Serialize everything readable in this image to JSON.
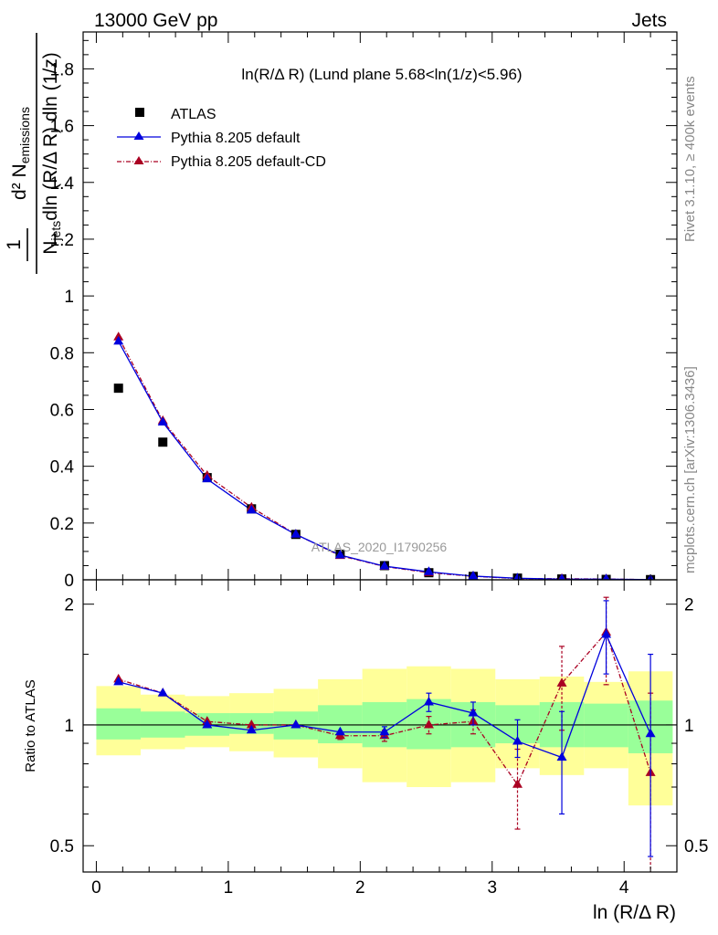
{
  "header": {
    "left_title": "13000 GeV pp",
    "right_title": "Jets"
  },
  "side_labels": {
    "rivet": "Rivet 3.1.10, ≥ 400k events",
    "mcplots": "mcplots.cern.ch [arXiv:1306.3436]"
  },
  "watermark": "ATLAS_2020_I1790256",
  "colors": {
    "atlas": "#000000",
    "pythia_default": "#0000dd",
    "pythia_cd": "#aa0022",
    "band_inner": "#99ff99",
    "band_outer": "#ffff99"
  },
  "chart_data": [
    {
      "type": "scatter",
      "title": "ln(R/Δ R) (Lund plane 5.68<ln(1/z)<5.96)",
      "xlabel": "ln (R/Δ R)",
      "ylabel": "1/N_jets d²N_emissions / dln (R/Δ R) dln (1/z)",
      "xlim": [
        -0.1,
        4.4
      ],
      "ylim": [
        0,
        1.93
      ],
      "yticks": [
        0,
        0.2,
        0.4,
        0.6,
        0.8,
        1,
        1.2,
        1.4,
        1.6,
        1.8
      ],
      "ytick_labels": [
        "0",
        "0.2",
        "0.4",
        "0.6",
        "0.8",
        "1",
        "1.2",
        "1.4",
        "1.6",
        "1.8"
      ],
      "legend_position": "top-left",
      "legend": [
        "ATLAS",
        "Pythia 8.205 default",
        "Pythia 8.205 default-CD"
      ],
      "x": [
        0.168,
        0.504,
        0.84,
        1.176,
        1.512,
        1.848,
        2.184,
        2.52,
        2.856,
        3.192,
        3.528,
        3.864,
        4.2
      ],
      "series": [
        {
          "name": "ATLAS",
          "values": [
            0.675,
            0.485,
            0.36,
            0.25,
            0.16,
            0.09,
            0.05,
            0.025,
            0.012,
            0.006,
            0.003,
            0.0015,
            0.0008
          ]
        },
        {
          "name": "Pythia 8.205 default",
          "values": [
            0.84,
            0.555,
            0.355,
            0.245,
            0.16,
            0.087,
            0.048,
            0.028,
            0.013,
            0.0055,
            0.0025,
            0.0025,
            0.0008
          ]
        },
        {
          "name": "Pythia 8.205 default-CD",
          "values": [
            0.855,
            0.56,
            0.367,
            0.255,
            0.16,
            0.085,
            0.047,
            0.025,
            0.0125,
            0.0043,
            0.0039,
            0.0026,
            0.0006
          ]
        }
      ]
    },
    {
      "type": "scatter",
      "title": "",
      "xlabel": "ln (R/Δ R)",
      "ylabel": "Ratio to ATLAS",
      "xlim": [
        -0.1,
        4.4
      ],
      "ylim": [
        0.43,
        2.3
      ],
      "log_y": true,
      "yticks": [
        0.5,
        1,
        2
      ],
      "ytick_labels": [
        "0.5",
        "1",
        "2"
      ],
      "xticks": [
        0,
        1,
        2,
        3,
        4
      ],
      "xtick_labels": [
        "0",
        "1",
        "2",
        "3",
        "4"
      ],
      "x": [
        0.168,
        0.504,
        0.84,
        1.176,
        1.512,
        1.848,
        2.184,
        2.52,
        2.856,
        3.192,
        3.528,
        3.864,
        4.2
      ],
      "bin_edges": [
        0.0,
        0.336,
        0.672,
        1.008,
        1.344,
        1.68,
        2.016,
        2.352,
        2.688,
        3.024,
        3.36,
        3.696,
        4.032,
        4.368
      ],
      "bands": {
        "inner": [
          [
            0.92,
            1.1
          ],
          [
            0.93,
            1.08
          ],
          [
            0.94,
            1.07
          ],
          [
            0.95,
            1.07
          ],
          [
            0.92,
            1.08
          ],
          [
            0.9,
            1.12
          ],
          [
            0.88,
            1.14
          ],
          [
            0.87,
            1.16
          ],
          [
            0.88,
            1.14
          ],
          [
            0.9,
            1.12
          ],
          [
            0.88,
            1.14
          ],
          [
            0.88,
            1.13
          ],
          [
            0.85,
            1.15
          ]
        ],
        "outer": [
          [
            0.84,
            1.25
          ],
          [
            0.87,
            1.19
          ],
          [
            0.88,
            1.18
          ],
          [
            0.86,
            1.2
          ],
          [
            0.83,
            1.23
          ],
          [
            0.78,
            1.3
          ],
          [
            0.72,
            1.38
          ],
          [
            0.7,
            1.4
          ],
          [
            0.72,
            1.38
          ],
          [
            0.78,
            1.3
          ],
          [
            0.75,
            1.32
          ],
          [
            0.78,
            1.28
          ],
          [
            0.63,
            1.36
          ]
        ]
      },
      "series": [
        {
          "name": "Pythia 8.205 default",
          "values": [
            1.28,
            1.2,
            1.0,
            0.97,
            1.0,
            0.96,
            0.96,
            1.14,
            1.07,
            0.91,
            0.83,
            1.68,
            0.95
          ],
          "err_lo": [
            0,
            0,
            0,
            0,
            0,
            0,
            0.03,
            0.06,
            0.07,
            0.08,
            0.23,
            0.34,
            0.48
          ],
          "err_hi": [
            0,
            0,
            0,
            0,
            0,
            0,
            0.03,
            0.06,
            0.07,
            0.12,
            0.25,
            0.36,
            0.55
          ]
        },
        {
          "name": "Pythia 8.205 default-CD",
          "values": [
            1.3,
            1.2,
            1.02,
            1.0,
            1.0,
            0.94,
            0.94,
            1.0,
            1.02,
            0.71,
            1.27,
            1.7,
            0.76
          ],
          "err_lo": [
            0,
            0,
            0,
            0,
            0,
            0.02,
            0.03,
            0.05,
            0.07,
            0.16,
            0.3,
            0.44,
            0.34
          ],
          "err_hi": [
            0,
            0,
            0,
            0,
            0,
            0.02,
            0.03,
            0.05,
            0.07,
            0.16,
            0.3,
            0.38,
            0.44
          ]
        }
      ],
      "reference": 1
    }
  ]
}
